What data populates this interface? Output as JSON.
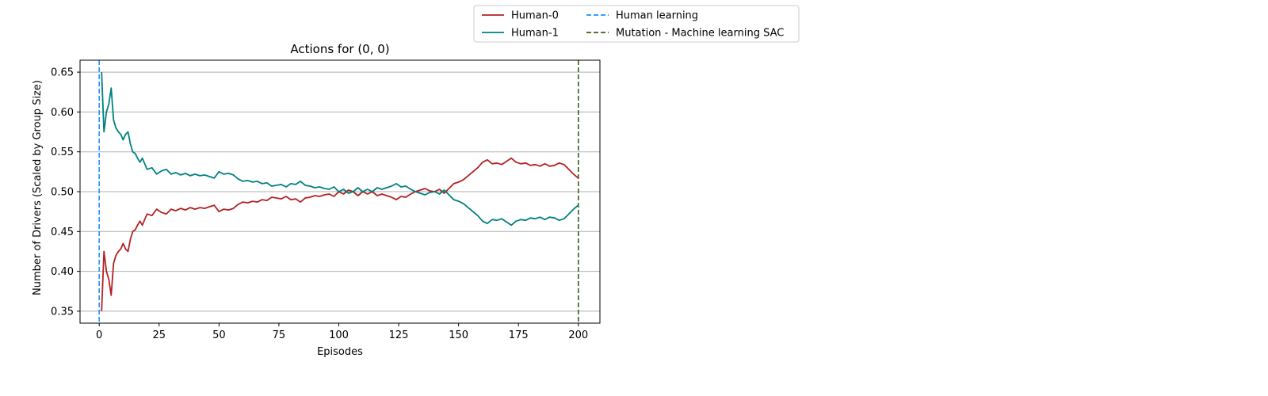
{
  "chart_data": {
    "type": "line",
    "title": "Actions for (0, 0)",
    "xlabel": "Episodes",
    "ylabel": "Number of Drivers (Scaled by Group Size)",
    "xlim": [
      -8,
      209
    ],
    "ylim": [
      0.335,
      0.665
    ],
    "xticks": [
      0,
      25,
      50,
      75,
      100,
      125,
      150,
      175,
      200
    ],
    "yticks": [
      0.35,
      0.4,
      0.45,
      0.5,
      0.55,
      0.6,
      0.65
    ],
    "ytick_labels": [
      "0.35",
      "0.40",
      "0.45",
      "0.50",
      "0.55",
      "0.60",
      "0.65"
    ],
    "grid": "horizontal",
    "legend_position": "top-center",
    "series": [
      {
        "name": "Human-0",
        "color": "#b22222",
        "style": "solid",
        "x": [
          1,
          2,
          3,
          4,
          5,
          6,
          7,
          8,
          9,
          10,
          11,
          12,
          13,
          14,
          15,
          16,
          17,
          18,
          19,
          20,
          22,
          24,
          26,
          28,
          30,
          32,
          34,
          36,
          38,
          40,
          42,
          44,
          46,
          48,
          50,
          52,
          54,
          56,
          58,
          60,
          62,
          64,
          66,
          68,
          70,
          72,
          74,
          76,
          78,
          80,
          82,
          84,
          86,
          88,
          90,
          92,
          94,
          96,
          98,
          100,
          102,
          104,
          106,
          108,
          110,
          112,
          114,
          116,
          118,
          120,
          122,
          124,
          126,
          128,
          130,
          132,
          134,
          136,
          138,
          140,
          142,
          144,
          146,
          148,
          150,
          152,
          154,
          156,
          158,
          160,
          162,
          164,
          166,
          168,
          170,
          172,
          174,
          176,
          178,
          180,
          182,
          184,
          186,
          188,
          190,
          192,
          194,
          196,
          198,
          200
        ],
        "y": [
          0.35,
          0.425,
          0.4,
          0.39,
          0.37,
          0.41,
          0.42,
          0.425,
          0.428,
          0.435,
          0.428,
          0.425,
          0.44,
          0.45,
          0.452,
          0.458,
          0.463,
          0.458,
          0.465,
          0.472,
          0.47,
          0.478,
          0.474,
          0.472,
          0.478,
          0.476,
          0.479,
          0.477,
          0.48,
          0.478,
          0.48,
          0.479,
          0.481,
          0.483,
          0.475,
          0.478,
          0.477,
          0.479,
          0.484,
          0.487,
          0.486,
          0.488,
          0.487,
          0.49,
          0.489,
          0.493,
          0.492,
          0.491,
          0.494,
          0.49,
          0.491,
          0.487,
          0.492,
          0.493,
          0.495,
          0.494,
          0.496,
          0.497,
          0.494,
          0.5,
          0.497,
          0.502,
          0.5,
          0.495,
          0.5,
          0.497,
          0.5,
          0.495,
          0.497,
          0.495,
          0.493,
          0.49,
          0.494,
          0.493,
          0.497,
          0.5,
          0.502,
          0.504,
          0.501,
          0.5,
          0.503,
          0.498,
          0.504,
          0.51,
          0.512,
          0.515,
          0.52,
          0.525,
          0.53,
          0.537,
          0.54,
          0.535,
          0.536,
          0.534,
          0.538,
          0.542,
          0.537,
          0.535,
          0.536,
          0.533,
          0.534,
          0.532,
          0.535,
          0.532,
          0.533,
          0.536,
          0.534,
          0.528,
          0.522,
          0.517
        ]
      },
      {
        "name": "Human-1",
        "color": "#008080",
        "style": "solid",
        "x": [
          1,
          2,
          3,
          4,
          5,
          6,
          7,
          8,
          9,
          10,
          11,
          12,
          13,
          14,
          15,
          16,
          17,
          18,
          19,
          20,
          22,
          24,
          26,
          28,
          30,
          32,
          34,
          36,
          38,
          40,
          42,
          44,
          46,
          48,
          50,
          52,
          54,
          56,
          58,
          60,
          62,
          64,
          66,
          68,
          70,
          72,
          74,
          76,
          78,
          80,
          82,
          84,
          86,
          88,
          90,
          92,
          94,
          96,
          98,
          100,
          102,
          104,
          106,
          108,
          110,
          112,
          114,
          116,
          118,
          120,
          122,
          124,
          126,
          128,
          130,
          132,
          134,
          136,
          138,
          140,
          142,
          144,
          146,
          148,
          150,
          152,
          154,
          156,
          158,
          160,
          162,
          164,
          166,
          168,
          170,
          172,
          174,
          176,
          178,
          180,
          182,
          184,
          186,
          188,
          190,
          192,
          194,
          196,
          198,
          200
        ],
        "y": [
          0.65,
          0.575,
          0.6,
          0.61,
          0.63,
          0.59,
          0.58,
          0.575,
          0.572,
          0.565,
          0.572,
          0.575,
          0.56,
          0.55,
          0.548,
          0.542,
          0.537,
          0.542,
          0.535,
          0.528,
          0.53,
          0.522,
          0.526,
          0.528,
          0.522,
          0.524,
          0.521,
          0.523,
          0.52,
          0.522,
          0.52,
          0.521,
          0.519,
          0.517,
          0.525,
          0.522,
          0.523,
          0.521,
          0.516,
          0.513,
          0.514,
          0.512,
          0.513,
          0.51,
          0.511,
          0.507,
          0.508,
          0.509,
          0.506,
          0.51,
          0.509,
          0.513,
          0.508,
          0.507,
          0.505,
          0.506,
          0.504,
          0.503,
          0.506,
          0.5,
          0.503,
          0.498,
          0.5,
          0.505,
          0.5,
          0.503,
          0.5,
          0.505,
          0.503,
          0.505,
          0.507,
          0.51,
          0.506,
          0.507,
          0.503,
          0.5,
          0.498,
          0.496,
          0.499,
          0.5,
          0.497,
          0.502,
          0.496,
          0.49,
          0.488,
          0.485,
          0.48,
          0.475,
          0.47,
          0.463,
          0.46,
          0.465,
          0.464,
          0.466,
          0.462,
          0.458,
          0.463,
          0.465,
          0.464,
          0.467,
          0.466,
          0.468,
          0.465,
          0.468,
          0.467,
          0.464,
          0.466,
          0.472,
          0.478,
          0.483
        ]
      },
      {
        "name": "Human learning",
        "color": "#1e90ff",
        "style": "dashed",
        "vline_x": 0
      },
      {
        "name": "Mutation - Machine learning SAC",
        "color": "#3a5f1a",
        "style": "dashed",
        "vline_x": 200
      }
    ]
  }
}
